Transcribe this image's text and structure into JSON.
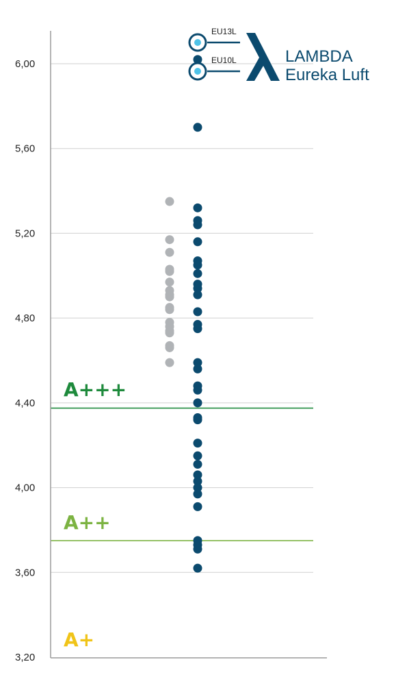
{
  "chart_data": {
    "type": "scatter",
    "ylim": [
      3.2,
      6.2
    ],
    "yticks": [
      "3,20",
      "3,60",
      "4,00",
      "4,40",
      "4,80",
      "5,20",
      "5,60",
      "6,00"
    ],
    "ytick_values": [
      3.2,
      3.6,
      4.0,
      4.4,
      4.8,
      5.2,
      5.6,
      6.0
    ],
    "grid": true,
    "thresholds": [
      {
        "label": "A+++",
        "value": 4.375,
        "color": "#1e8a3c"
      },
      {
        "label": "A++",
        "value": 3.75,
        "color": "#7cb342"
      },
      {
        "label": "A+",
        "value": null,
        "color": "#f0c419"
      }
    ],
    "series": [
      {
        "color": "#b0b3b6",
        "x": 1,
        "values": [
          5.35,
          5.17,
          5.11,
          5.03,
          5.02,
          4.97,
          4.93,
          4.91,
          4.9,
          4.85,
          4.84,
          4.78,
          4.76,
          4.74,
          4.73,
          4.67,
          4.66,
          4.59
        ]
      },
      {
        "color": "#0b4a6e",
        "x": 2,
        "values": [
          6.02,
          5.7,
          5.32,
          5.26,
          5.24,
          5.16,
          5.07,
          5.05,
          5.01,
          4.96,
          4.94,
          4.91,
          4.83,
          4.77,
          4.75,
          4.59,
          4.56,
          4.48,
          4.46,
          4.4,
          4.33,
          4.32,
          4.21,
          4.15,
          4.11,
          4.06,
          4.03,
          4.0,
          3.97,
          3.91,
          3.75,
          3.73,
          3.71,
          3.62
        ]
      }
    ]
  },
  "legend": {
    "items": [
      {
        "label": "EU13L",
        "value": 6.1,
        "dot_color": "#4fc3e8"
      },
      {
        "label": "EU10L",
        "value": 5.96,
        "dot_color": "#4fc3e8"
      }
    ],
    "brand_color": "#0b4a6e",
    "brand_line1": "LAMBDA",
    "brand_line2": "Eureka Luft"
  }
}
